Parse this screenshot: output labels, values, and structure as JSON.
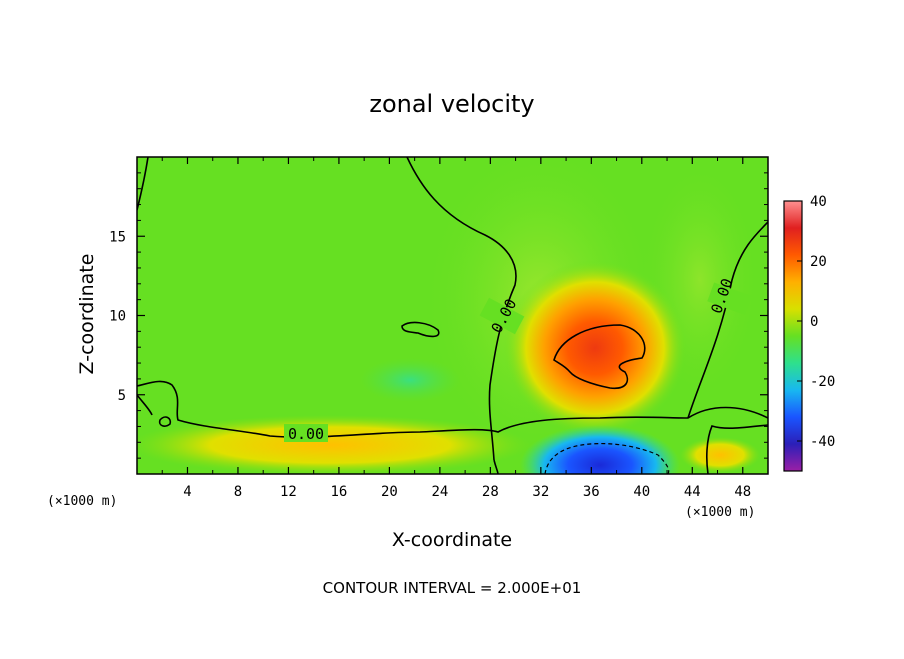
{
  "chart_data": {
    "type": "heatmap",
    "title": "zonal velocity",
    "xlabel": "X-coordinate",
    "ylabel": "Z-coordinate",
    "x_unit": "(×1000 m)",
    "z_unit": "(×1000 m)",
    "xlim": [
      0,
      50
    ],
    "ylim": [
      0,
      20
    ],
    "x_ticks": [
      4,
      8,
      12,
      16,
      20,
      24,
      28,
      32,
      36,
      40,
      44,
      48
    ],
    "y_ticks": [
      5,
      10,
      15
    ],
    "colorbar": {
      "ticks": [
        40,
        20,
        0,
        -20,
        -40
      ],
      "range": [
        -50,
        40
      ],
      "colors": [
        "#9b1fa6",
        "#2b1fb8",
        "#1a55ff",
        "#18b8f0",
        "#2ee08c",
        "#66e022",
        "#d8e000",
        "#ffb000",
        "#ff5a00",
        "#e02020",
        "#ff9090"
      ]
    },
    "contour_labels": [
      "0.00",
      "0.00",
      "0.00"
    ],
    "footnote": "CONTOUR INTERVAL = 2.000E+01",
    "features": [
      {
        "name": "positive-jet-core",
        "x": 36.5,
        "z": 7.5,
        "value": 30
      },
      {
        "name": "negative-near-surface-core",
        "x": 36.5,
        "z": 0.7,
        "value": -38
      },
      {
        "name": "weak-positive-surface-band",
        "x": 18,
        "z": 0.6,
        "value": 10
      }
    ]
  }
}
